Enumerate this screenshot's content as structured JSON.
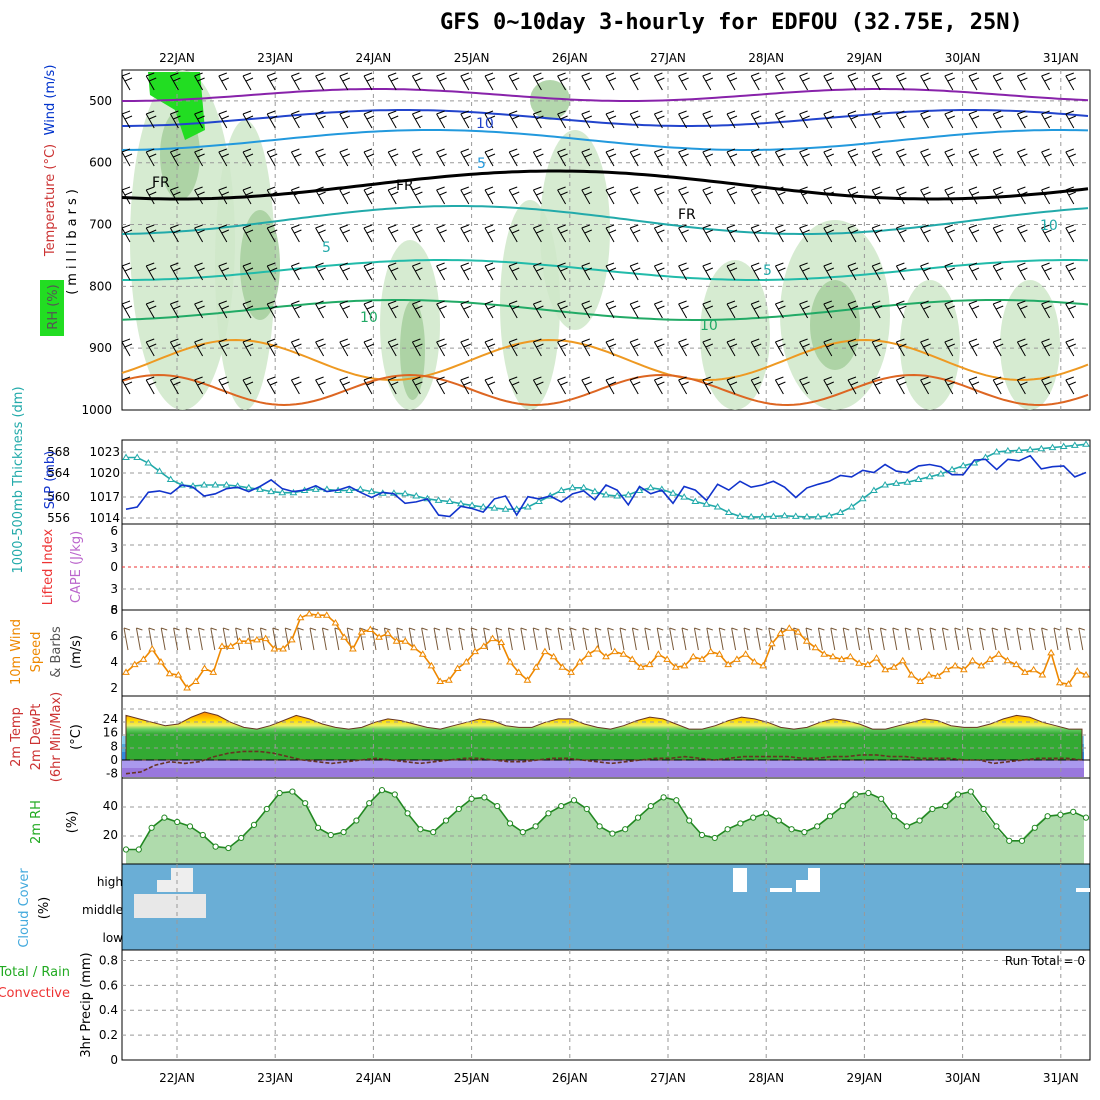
{
  "title": "GFS 0~10day 3-hourly for EDFOU (32.75E, 25N)",
  "dates": [
    "22JAN",
    "23JAN",
    "24JAN",
    "25JAN",
    "26JAN",
    "27JAN",
    "28JAN",
    "29JAN",
    "30JAN",
    "31JAN"
  ],
  "colors": {
    "rh_green": "#b7deb0",
    "rh_green_dark": "#7fbf7f",
    "rh_bright": "#22dd22",
    "wind": "#0033cc",
    "temperature": "#cc3333",
    "slp": "#1133cc",
    "thickness": "#22aaaa",
    "lifted_index": "#ee3333",
    "cape": "#bb66cc",
    "wind10m": "#ee8800",
    "rh2m": "#22aa22",
    "cloud": "#6aaed6",
    "precip_total": "#22aa22",
    "precip_conv": "#ee3333"
  },
  "panels": {
    "upper": {
      "ylabel_parts": [
        "RH (%)",
        "Temperature (°C)",
        "Wind (m/s)",
        "(millibars)"
      ],
      "y_ticks": [
        "500",
        "600",
        "700",
        "800",
        "900",
        "1000"
      ],
      "contour_labels": [
        "10",
        "5",
        "FR",
        "FR",
        "FR",
        "5",
        "10",
        "10",
        "5",
        "10"
      ]
    },
    "slp": {
      "ylabel_left": "1000-500mb Thickness (dm)",
      "ylabel_right": "SLP (mb)",
      "left_ticks": [
        "568",
        "564",
        "560",
        "556"
      ],
      "right_ticks": [
        "1023",
        "1020",
        "1017",
        "1014"
      ]
    },
    "li": {
      "ylabel_a": "Lifted Index",
      "ylabel_b": "CAPE (J/kg)",
      "ticks": [
        "6",
        "3",
        "0",
        "3",
        "6"
      ]
    },
    "wind": {
      "ylabel_a": "10m Wind",
      "ylabel_b": "Speed",
      "ylabel_c": "& Barbs",
      "ylabel_d": "(m/s)",
      "ticks": [
        "8",
        "6",
        "4",
        "2"
      ]
    },
    "temp": {
      "ylabel_a": "2m Temp",
      "ylabel_b": "2m DewPt",
      "ylabel_c": "(6hr Min/Max)",
      "ylabel_d": "(°C)",
      "ticks": [
        "24",
        "16",
        "8",
        "0",
        "-8"
      ]
    },
    "rh": {
      "ylabel_a": "2m RH",
      "ylabel_b": "(%)",
      "ticks": [
        "40",
        "20"
      ]
    },
    "cloud": {
      "ylabel_a": "Cloud Cover",
      "ylabel_b": "(%)",
      "levels": [
        "high",
        "middle",
        "low"
      ]
    },
    "precip": {
      "ylabel_a": "Total / Rain",
      "ylabel_b": "Convective",
      "ylabel_c": "3hr Precip (mm)",
      "ticks": [
        "0.8",
        "0.6",
        "0.4",
        "0.2",
        "0"
      ],
      "run_total": "Run Total = 0"
    }
  },
  "chart_data": [
    {
      "type": "line",
      "name_hint": "SLP",
      "x_unit": "days from 21JAN 12Z",
      "series": [
        {
          "name": "SLP (mb)",
          "values": [
            1015.2,
            1015.5,
            1017.5,
            1017.7,
            1017.3,
            1018.5,
            1018.2,
            1017.0,
            1017.3,
            1018.0,
            1018.2,
            1017.6,
            1018.3,
            1019.2,
            1018.0,
            1017.6,
            1017.8,
            1018.4,
            1017.6,
            1017.8,
            1018.3,
            1017.5,
            1016.8,
            1017.5,
            1017.3,
            1016.0,
            1016.2,
            1016.6,
            1014.4,
            1014.2,
            1015.6,
            1015.3,
            1014.8,
            1016.6,
            1017.0,
            1014.4,
            1016.9,
            1016.6,
            1017.0,
            1016.2,
            1017.3,
            1017.7,
            1016.5,
            1018.5,
            1017.8,
            1015.8,
            1018.3,
            1017.3,
            1017.8,
            1016.0,
            1018.3,
            1017.8,
            1016.4,
            1018.6,
            1017.8,
            1019.0,
            1018.2,
            1018.5,
            1019.0,
            1018.2,
            1016.8,
            1018.1,
            1018.6,
            1019.0,
            1019.8,
            1019.6,
            1020.5,
            1020.2,
            1021.3,
            1020.4,
            1020.2,
            1021.1,
            1021.3,
            1021.0,
            1019.9,
            1019.9,
            1021.9,
            1022.0,
            1020.6,
            1022.0,
            1021.8,
            1022.5,
            1020.7,
            1021.0,
            1021.1,
            1019.6,
            1020.2
          ]
        },
        {
          "name": "1000-500mb Thickness (dm)",
          "values": [
            567.0,
            567.0,
            566.0,
            564.5,
            563.0,
            562.0,
            561.8,
            562.0,
            562.0,
            562.0,
            561.8,
            561.5,
            561.2,
            560.8,
            560.6,
            560.6,
            561.0,
            561.2,
            561.2,
            561.0,
            561.0,
            561.2,
            560.8,
            560.5,
            560.5,
            560.4,
            560.0,
            559.5,
            559.2,
            559.0,
            558.6,
            558.3,
            558.0,
            557.8,
            557.6,
            557.6,
            558.0,
            559.0,
            560.0,
            561.0,
            561.5,
            561.5,
            560.8,
            560.2,
            560.0,
            560.2,
            561.0,
            561.5,
            561.2,
            560.5,
            559.8,
            559.0,
            558.5,
            558.0,
            557.0,
            556.3,
            556.2,
            556.2,
            556.3,
            556.4,
            556.3,
            556.2,
            556.2,
            556.4,
            557.0,
            558.0,
            559.5,
            561.0,
            562.0,
            562.3,
            562.5,
            563.0,
            563.5,
            564.0,
            564.8,
            565.5,
            566.0,
            567.0,
            568.0,
            568.2,
            568.3,
            568.4,
            568.6,
            568.8,
            569.0,
            569.2,
            569.4
          ]
        }
      ]
    },
    {
      "type": "line",
      "name_hint": "10m wind",
      "series": [
        {
          "name": "Speed (m/s)",
          "values": [
            3.2,
            3.8,
            4.2,
            5.0,
            4.0,
            3.1,
            3.0,
            2.0,
            2.5,
            3.5,
            3.2,
            5.2,
            5.2,
            5.6,
            5.6,
            5.7,
            5.8,
            5.0,
            5.0,
            5.7,
            7.4,
            7.7,
            7.6,
            7.6,
            7.0,
            5.9,
            5.0,
            6.3,
            6.5,
            5.9,
            6.2,
            5.6,
            5.6,
            5.1,
            4.6,
            3.7,
            2.5,
            2.6,
            3.5,
            4.0,
            4.8,
            5.2,
            5.8,
            5.5,
            4.0,
            3.2,
            2.6,
            3.6,
            4.8,
            4.4,
            3.6,
            3.2,
            4.0,
            4.6,
            5.0,
            4.4,
            4.8,
            4.6,
            4.2,
            3.6,
            3.8,
            4.6,
            4.2,
            3.6,
            3.7,
            4.4,
            4.2,
            4.8,
            4.6,
            3.8,
            4.2,
            4.6,
            4.0,
            3.7,
            5.4,
            6.2,
            6.6,
            6.3,
            5.6,
            5.1,
            4.6,
            4.4,
            4.2,
            4.4,
            3.9,
            3.8,
            4.3,
            3.4,
            3.6,
            4.1,
            3.0,
            2.5,
            3.0,
            2.9,
            3.4,
            3.7,
            3.4,
            4.1,
            3.7,
            4.2,
            4.6,
            4.1,
            3.8,
            3.2,
            3.4,
            3.0,
            4.7,
            2.4,
            2.3,
            3.3,
            3.0
          ]
        }
      ]
    },
    {
      "type": "line",
      "name_hint": "2m RH",
      "series": [
        {
          "name": "2m RH (%)",
          "values": [
            10,
            10,
            25,
            32,
            29,
            26,
            20,
            12,
            11,
            18,
            27,
            38,
            49,
            50,
            42,
            25,
            20,
            22,
            30,
            42,
            51,
            48,
            35,
            24,
            22,
            30,
            38,
            45,
            46,
            40,
            28,
            22,
            26,
            35,
            40,
            44,
            38,
            26,
            21,
            24,
            32,
            40,
            46,
            44,
            30,
            20,
            18,
            24,
            28,
            32,
            35,
            30,
            24,
            22,
            26,
            33,
            40,
            48,
            49,
            45,
            33,
            26,
            30,
            38,
            40,
            48,
            50,
            38,
            26,
            16,
            16,
            25,
            33,
            34,
            36,
            32
          ]
        }
      ]
    },
    {
      "type": "line",
      "name_hint": "2m Temp",
      "series": [
        {
          "name": "2m Temp max (°C)",
          "values": [
            26,
            24,
            22,
            20,
            21,
            25,
            28,
            26,
            22,
            19,
            18,
            20,
            23,
            26,
            24,
            21,
            19,
            18,
            19,
            22,
            24,
            23,
            21,
            19,
            18,
            20,
            22,
            24,
            23,
            20,
            19,
            19,
            22,
            24,
            24,
            21,
            19,
            18,
            20,
            23,
            25,
            24,
            21,
            18,
            18,
            20,
            23,
            25,
            24,
            22,
            19,
            18,
            19,
            22,
            24,
            23,
            21,
            18,
            18,
            20,
            22,
            24,
            23,
            20,
            19,
            19,
            21,
            24,
            26,
            25,
            22,
            20,
            18,
            18
          ]
        },
        {
          "name": "2m DewPt (°C)",
          "values": [
            -8,
            -7,
            -3,
            -1,
            -2,
            -1,
            2,
            4,
            5,
            5,
            4,
            2,
            0,
            -1,
            -2,
            -1,
            0,
            1,
            0,
            -1,
            -2,
            -1,
            0,
            1,
            1,
            0,
            -1,
            -1,
            0,
            1,
            1,
            0,
            -1,
            -2,
            -1,
            0,
            1,
            1,
            2,
            1,
            0,
            1,
            2,
            2,
            2,
            2,
            1,
            1,
            2,
            2,
            3,
            3,
            2,
            2,
            1,
            1,
            1,
            0,
            0,
            -2,
            -1,
            0,
            1,
            1,
            1,
            0
          ]
        }
      ]
    },
    {
      "type": "bar",
      "name_hint": "Cloud Cover",
      "categories": [
        "high",
        "middle",
        "low"
      ],
      "values": [
        0,
        0,
        0
      ]
    },
    {
      "type": "bar",
      "name_hint": "3hr Precip",
      "values": [
        0
      ],
      "ylim": [
        0,
        0.9
      ]
    }
  ]
}
